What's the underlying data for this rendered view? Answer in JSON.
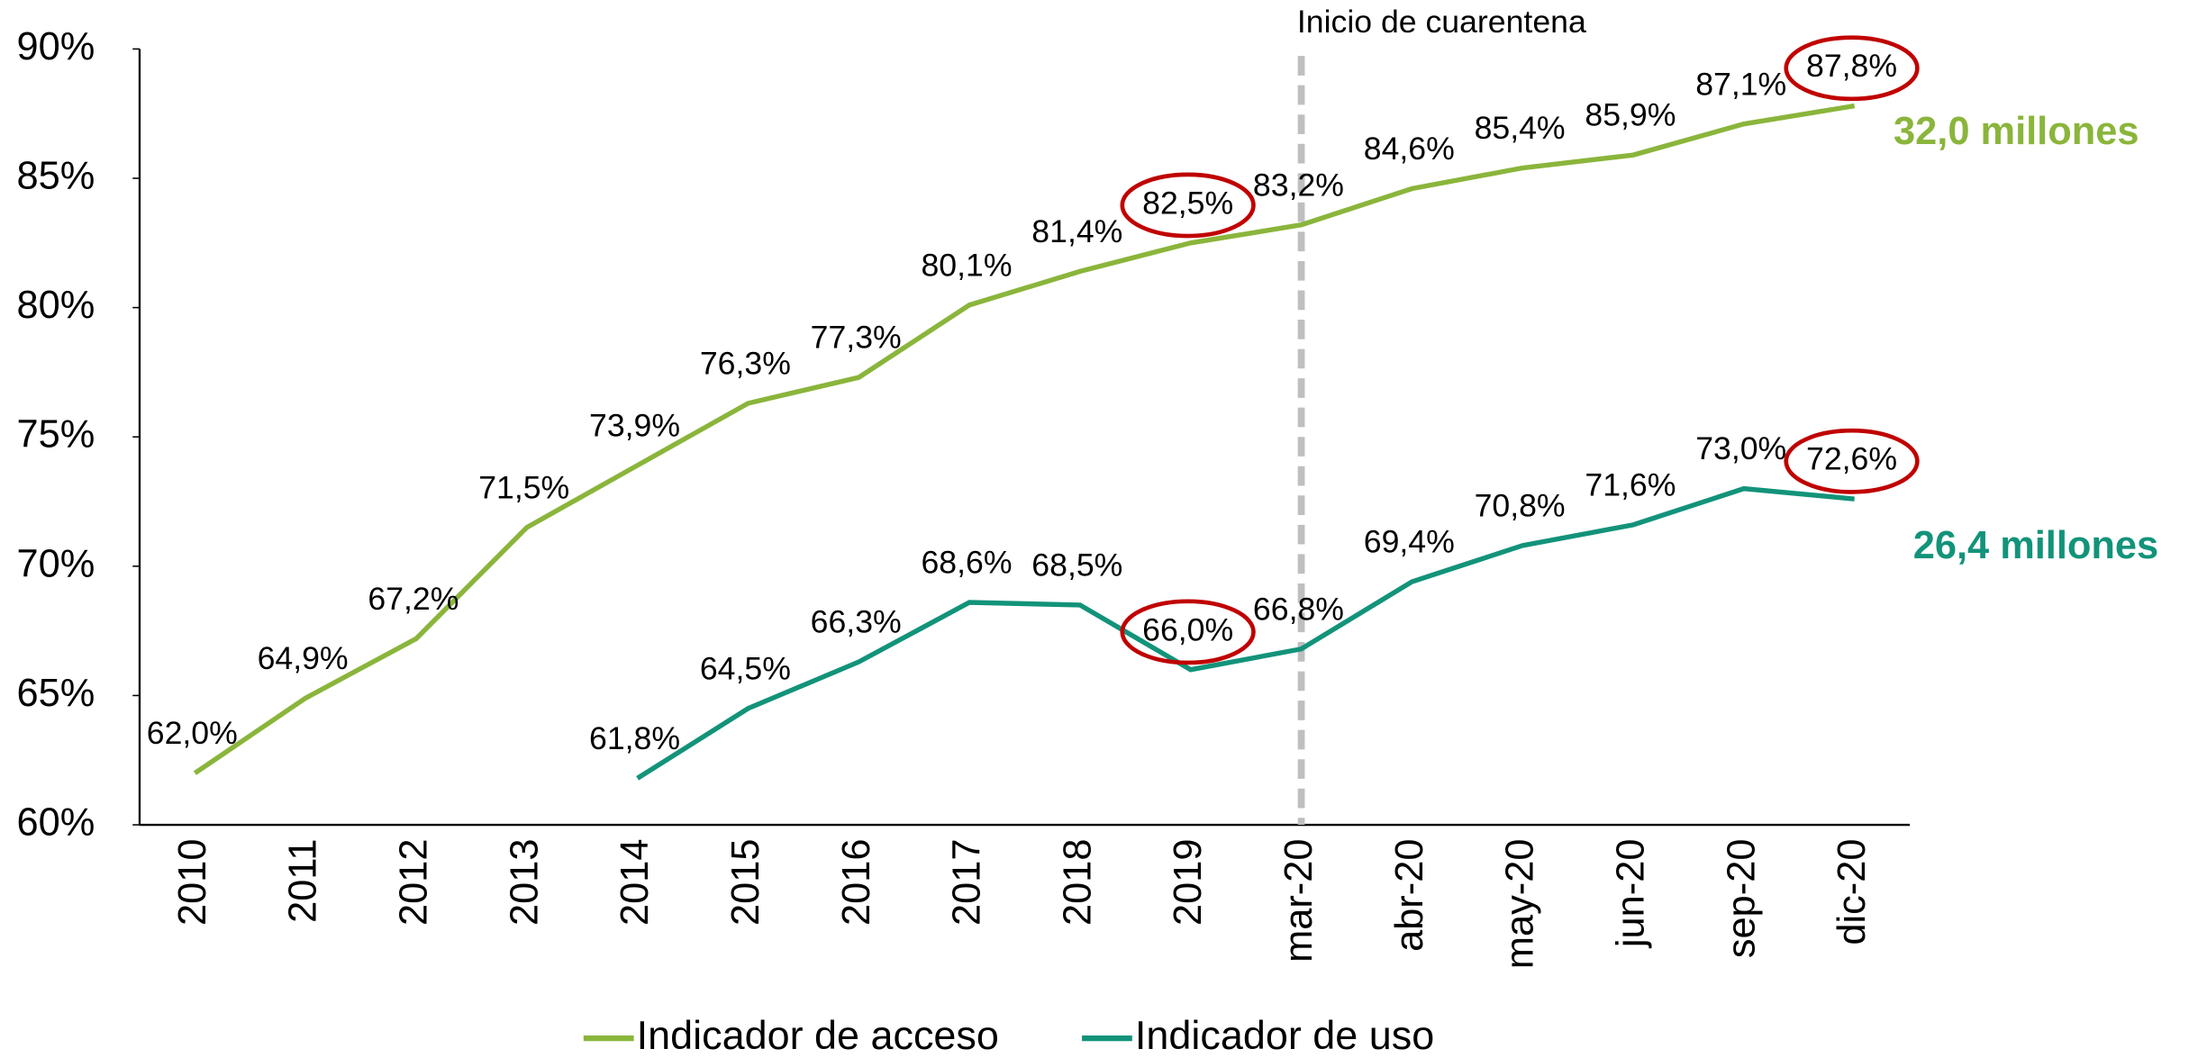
{
  "chart_data": {
    "type": "line",
    "categories": [
      "2010",
      "2011",
      "2012",
      "2013",
      "2014",
      "2015",
      "2016",
      "2017",
      "2018",
      "2019",
      "mar-20",
      "abr-20",
      "may-20",
      "jun-20",
      "sep-20",
      "dic-20"
    ],
    "series": [
      {
        "name": "Indicador de acceso",
        "color": "#8ab53b",
        "values": [
          62.0,
          64.9,
          67.2,
          71.5,
          73.9,
          76.3,
          77.3,
          80.1,
          81.4,
          82.5,
          83.2,
          84.6,
          85.4,
          85.9,
          87.1,
          87.8
        ],
        "value_labels": [
          "62,0%",
          "64,9%",
          "67,2%",
          "71,5%",
          "73,9%",
          "76,3%",
          "77,3%",
          "80,1%",
          "81,4%",
          "82,5%",
          "83,2%",
          "84,6%",
          "85,4%",
          "85,9%",
          "87,1%",
          "87,8%"
        ],
        "total_label": "32,0 millones"
      },
      {
        "name": "Indicador de uso",
        "color": "#12937a",
        "values": [
          null,
          null,
          null,
          null,
          61.8,
          64.5,
          66.3,
          68.6,
          68.5,
          66.0,
          66.8,
          69.4,
          70.8,
          71.6,
          73.0,
          72.6
        ],
        "value_labels": [
          null,
          null,
          null,
          null,
          "61,8%",
          "64,5%",
          "66,3%",
          "68,6%",
          "68,5%",
          "66,0%",
          "66,8%",
          "69,4%",
          "70,8%",
          "71,6%",
          "73,0%",
          "72,6%"
        ],
        "total_label": "26,4 millones"
      }
    ],
    "ylim": [
      60,
      90
    ],
    "yticks": [
      {
        "value": 60,
        "label": "60%"
      },
      {
        "value": 65,
        "label": "65%"
      },
      {
        "value": 70,
        "label": "70%"
      },
      {
        "value": 75,
        "label": "75%"
      },
      {
        "value": 80,
        "label": "80%"
      },
      {
        "value": 85,
        "label": "85%"
      },
      {
        "value": 90,
        "label": "90%"
      }
    ],
    "annotation": {
      "text": "Inicio de cuarentena",
      "x": "mar-20"
    },
    "legend": "bottom"
  }
}
